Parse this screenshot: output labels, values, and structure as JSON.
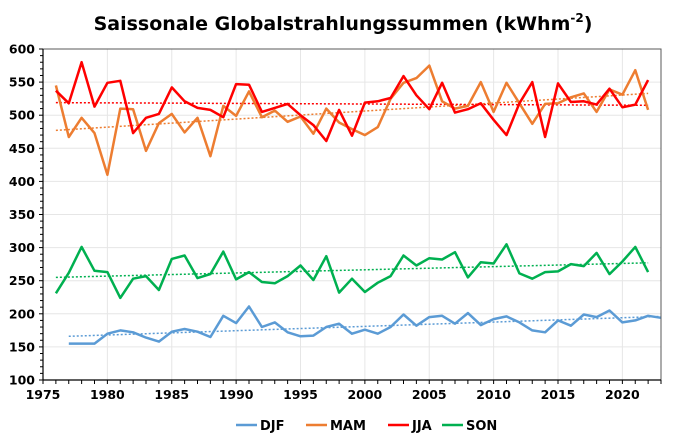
{
  "chart_data": {
    "type": "line",
    "title": "Saissonale Globalstrahlungssummen (kWhm",
    "title_superscript": "-2",
    "title_suffix": ")",
    "xlabel": "",
    "ylabel": "",
    "xlim": [
      1975,
      2023
    ],
    "ylim": [
      100,
      600
    ],
    "x_ticks": [
      1975,
      1980,
      1985,
      1990,
      1995,
      2000,
      2005,
      2010,
      2015,
      2020
    ],
    "y_ticks": [
      100,
      150,
      200,
      250,
      300,
      350,
      400,
      450,
      500,
      550,
      600
    ],
    "grid": true,
    "legend_position": "bottom",
    "series": [
      {
        "name": "DJF",
        "color": "#5B9BD5",
        "x": [
          1977,
          1978,
          1979,
          1980,
          1981,
          1982,
          1983,
          1984,
          1985,
          1986,
          1987,
          1988,
          1989,
          1990,
          1991,
          1992,
          1993,
          1994,
          1995,
          1996,
          1997,
          1998,
          1999,
          2000,
          2001,
          2002,
          2003,
          2004,
          2005,
          2006,
          2007,
          2008,
          2009,
          2010,
          2011,
          2012,
          2013,
          2014,
          2015,
          2016,
          2017,
          2018,
          2019,
          2020,
          2021,
          2022,
          2023
        ],
        "values": [
          155,
          155,
          155,
          170,
          175,
          172,
          164,
          158,
          173,
          177,
          173,
          165,
          197,
          186,
          211,
          180,
          187,
          172,
          166,
          167,
          180,
          185,
          170,
          176,
          170,
          180,
          199,
          182,
          195,
          197,
          185,
          201,
          183,
          192,
          196,
          187,
          175,
          172,
          190,
          182,
          199,
          195,
          205,
          187,
          190,
          197,
          194
        ],
        "trend": [
          166,
          196
        ]
      },
      {
        "name": "MAM",
        "color": "#ED7D31",
        "x": [
          1976,
          1977,
          1978,
          1979,
          1980,
          1981,
          1982,
          1983,
          1984,
          1985,
          1986,
          1987,
          1988,
          1989,
          1990,
          1991,
          1992,
          1993,
          1994,
          1995,
          1996,
          1997,
          1998,
          1999,
          2000,
          2001,
          2002,
          2003,
          2004,
          2005,
          2006,
          2007,
          2008,
          2009,
          2010,
          2011,
          2012,
          2013,
          2014,
          2015,
          2016,
          2017,
          2018,
          2019,
          2020,
          2021,
          2022
        ],
        "values": [
          545,
          467,
          496,
          473,
          410,
          510,
          509,
          446,
          488,
          502,
          474,
          496,
          438,
          514,
          499,
          536,
          497,
          507,
          490,
          498,
          472,
          510,
          489,
          479,
          470,
          482,
          525,
          549,
          556,
          575,
          521,
          510,
          514,
          550,
          505,
          549,
          518,
          487,
          517,
          518,
          527,
          533,
          505,
          539,
          531,
          568,
          508
        ],
        "trend": [
          477,
          533
        ]
      },
      {
        "name": "JJA",
        "color": "#FF0000",
        "x": [
          1976,
          1977,
          1978,
          1979,
          1980,
          1981,
          1982,
          1983,
          1984,
          1985,
          1986,
          1987,
          1988,
          1989,
          1990,
          1991,
          1992,
          1993,
          1994,
          1995,
          1996,
          1997,
          1998,
          1999,
          2000,
          2001,
          2002,
          2003,
          2004,
          2005,
          2006,
          2007,
          2008,
          2009,
          2010,
          2011,
          2012,
          2013,
          2014,
          2015,
          2016,
          2017,
          2018,
          2019,
          2020,
          2021,
          2022
        ],
        "values": [
          537,
          518,
          580,
          513,
          549,
          552,
          473,
          496,
          502,
          542,
          521,
          511,
          508,
          497,
          547,
          546,
          505,
          511,
          517,
          500,
          485,
          461,
          508,
          469,
          519,
          521,
          526,
          559,
          530,
          509,
          549,
          504,
          509,
          518,
          493,
          470,
          518,
          550,
          467,
          548,
          520,
          521,
          516,
          540,
          512,
          516,
          553
        ],
        "trend": [
          519,
          515
        ]
      },
      {
        "name": "SON",
        "color": "#00B050",
        "x": [
          1976,
          1977,
          1978,
          1979,
          1980,
          1981,
          1982,
          1983,
          1984,
          1985,
          1986,
          1987,
          1988,
          1989,
          1990,
          1991,
          1992,
          1993,
          1994,
          1995,
          1996,
          1997,
          1998,
          1999,
          2000,
          2001,
          2002,
          2003,
          2004,
          2005,
          2006,
          2007,
          2008,
          2009,
          2010,
          2011,
          2012,
          2013,
          2014,
          2015,
          2016,
          2017,
          2018,
          2019,
          2020,
          2021,
          2022
        ],
        "values": [
          231,
          262,
          301,
          265,
          263,
          224,
          253,
          257,
          236,
          283,
          288,
          254,
          260,
          294,
          252,
          263,
          248,
          246,
          257,
          273,
          251,
          287,
          232,
          253,
          233,
          247,
          257,
          288,
          273,
          284,
          282,
          293,
          255,
          278,
          276,
          305,
          261,
          253,
          263,
          264,
          275,
          272,
          292,
          260,
          279,
          301,
          263
        ],
        "trend": [
          255,
          277
        ]
      }
    ]
  }
}
